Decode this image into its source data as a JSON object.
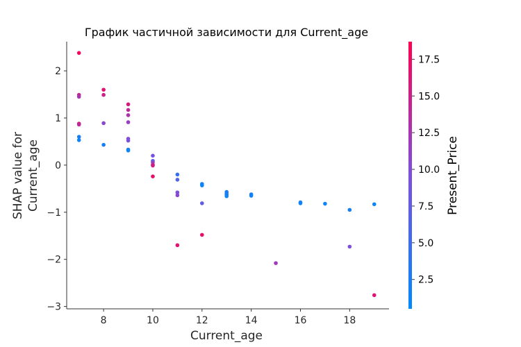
{
  "chart_data": {
    "type": "scatter",
    "title": "График частичной зависимости для Current_age",
    "xlabel": "Current_age",
    "ylabel": [
      "SHAP value for",
      "Current_age"
    ],
    "xlim": [
      6.5,
      19.6
    ],
    "ylim": [
      -3.05,
      2.62
    ],
    "x_ticks": [
      8,
      10,
      12,
      14,
      16,
      18
    ],
    "x_tick_labels": [
      "8",
      "10",
      "12",
      "14",
      "16",
      "18"
    ],
    "y_ticks": [
      2,
      1,
      0,
      -1,
      -2,
      -3
    ],
    "y_tick_labels": [
      "2",
      "1",
      "0",
      "−1",
      "−2",
      "−3"
    ],
    "grid": false,
    "colorbar": {
      "label": "Present_Price",
      "range": [
        0.5,
        18.7
      ],
      "ticks": [
        17.5,
        15.0,
        12.5,
        10.0,
        7.5,
        5.0,
        2.5
      ],
      "tick_labels": [
        "17.5",
        "15.0",
        "12.5",
        "10.0",
        "7.5",
        "5.0",
        "2.5"
      ],
      "colormap": [
        "#008afb",
        "#7d4fdc",
        "#ff0052"
      ]
    },
    "points": [
      {
        "x": 7,
        "y": 2.38,
        "c": 18.0
      },
      {
        "x": 7,
        "y": 1.49,
        "c": 14.5
      },
      {
        "x": 7,
        "y": 1.45,
        "c": 12.5
      },
      {
        "x": 7,
        "y": 0.88,
        "c": 16.0
      },
      {
        "x": 7,
        "y": 0.86,
        "c": 14.0
      },
      {
        "x": 7,
        "y": 0.6,
        "c": 2.5
      },
      {
        "x": 7,
        "y": 0.53,
        "c": 1.5
      },
      {
        "x": 8,
        "y": 1.6,
        "c": 16.5
      },
      {
        "x": 8,
        "y": 1.49,
        "c": 15.0
      },
      {
        "x": 8,
        "y": 0.89,
        "c": 10.5
      },
      {
        "x": 8,
        "y": 0.43,
        "c": 2.0
      },
      {
        "x": 9,
        "y": 1.29,
        "c": 16.0
      },
      {
        "x": 9,
        "y": 1.17,
        "c": 14.0
      },
      {
        "x": 9,
        "y": 1.06,
        "c": 13.0
      },
      {
        "x": 9,
        "y": 0.91,
        "c": 11.5
      },
      {
        "x": 9,
        "y": 0.56,
        "c": 10.0
      },
      {
        "x": 9,
        "y": 0.52,
        "c": 9.5
      },
      {
        "x": 9,
        "y": 0.33,
        "c": 2.5
      },
      {
        "x": 9,
        "y": 0.31,
        "c": 1.5
      },
      {
        "x": 10,
        "y": 0.2,
        "c": 9.0
      },
      {
        "x": 10,
        "y": 0.09,
        "c": 6.5
      },
      {
        "x": 10,
        "y": 0.06,
        "c": 11.0
      },
      {
        "x": 10,
        "y": 0.01,
        "c": 14.5
      },
      {
        "x": 10,
        "y": -0.01,
        "c": 15.5
      },
      {
        "x": 10,
        "y": -0.24,
        "c": 17.0
      },
      {
        "x": 11,
        "y": -0.2,
        "c": 4.5
      },
      {
        "x": 11,
        "y": -0.31,
        "c": 6.5
      },
      {
        "x": 11,
        "y": -0.58,
        "c": 9.5
      },
      {
        "x": 11,
        "y": -0.64,
        "c": 10.5
      },
      {
        "x": 11,
        "y": -1.7,
        "c": 16.5
      },
      {
        "x": 12,
        "y": -0.4,
        "c": 2.0
      },
      {
        "x": 12,
        "y": -0.43,
        "c": 1.5
      },
      {
        "x": 12,
        "y": -0.81,
        "c": 7.5
      },
      {
        "x": 12,
        "y": -1.48,
        "c": 17.0
      },
      {
        "x": 13,
        "y": -0.57,
        "c": 2.5
      },
      {
        "x": 13,
        "y": -0.6,
        "c": 3.0
      },
      {
        "x": 13,
        "y": -0.63,
        "c": 2.0
      },
      {
        "x": 13,
        "y": -0.66,
        "c": 1.5
      },
      {
        "x": 14,
        "y": -0.62,
        "c": 2.5
      },
      {
        "x": 14,
        "y": -0.65,
        "c": 1.5
      },
      {
        "x": 15,
        "y": -2.08,
        "c": 12.0
      },
      {
        "x": 16,
        "y": -0.79,
        "c": 2.0
      },
      {
        "x": 16,
        "y": -0.81,
        "c": 1.5
      },
      {
        "x": 17,
        "y": -0.82,
        "c": 1.5
      },
      {
        "x": 18,
        "y": -0.95,
        "c": 2.0
      },
      {
        "x": 18,
        "y": -1.73,
        "c": 9.5
      },
      {
        "x": 19,
        "y": -0.83,
        "c": 1.5
      },
      {
        "x": 19,
        "y": -2.76,
        "c": 16.5
      }
    ]
  }
}
